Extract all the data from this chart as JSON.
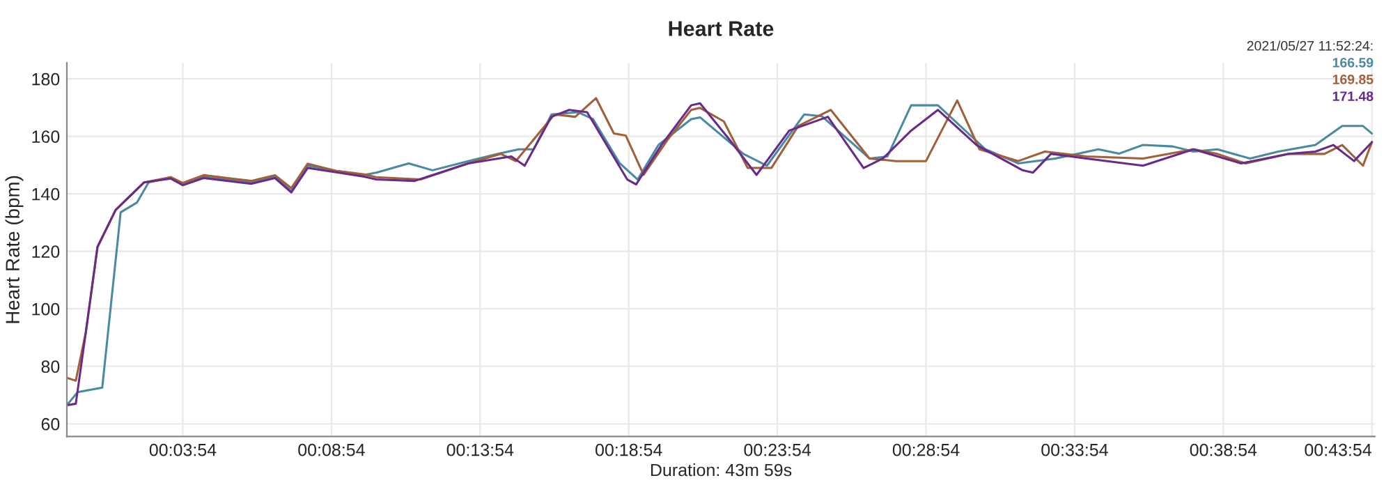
{
  "chart_data": {
    "type": "line",
    "title": "Heart Rate",
    "xlabel": "Duration: 43m 59s",
    "ylabel": "Heart Rate (bpm)",
    "xlim": [
      0,
      44
    ],
    "ylim": [
      55.6,
      185.5
    ],
    "xticks": [
      {
        "value": 3.9,
        "label": "00:03:54"
      },
      {
        "value": 8.9,
        "label": "00:08:54"
      },
      {
        "value": 13.9,
        "label": "00:13:54"
      },
      {
        "value": 18.9,
        "label": "00:18:54"
      },
      {
        "value": 23.9,
        "label": "00:23:54"
      },
      {
        "value": 28.9,
        "label": "00:28:54"
      },
      {
        "value": 33.9,
        "label": "00:33:54"
      },
      {
        "value": 38.9,
        "label": "00:38:54"
      },
      {
        "value": 43.9,
        "label": "00:43:54"
      }
    ],
    "yticks": [
      60,
      80,
      100,
      120,
      140,
      160,
      180
    ],
    "grid": true,
    "legend": false,
    "marker": "none",
    "line_style": "solid",
    "annotations": [
      "2021/05/27 11:52:24:",
      "166.59",
      "169.85",
      "171.48"
    ],
    "series": [
      {
        "color": "#4a8aa0",
        "x": [
          0,
          0.36,
          1.19,
          1.81,
          2.36,
          2.75,
          3.5,
          3.9,
          4.6,
          6.2,
          7.0,
          7.55,
          8.1,
          9.06,
          10.0,
          10.41,
          11.5,
          12.3,
          13.5,
          14.5,
          15.2,
          15.7,
          16.3,
          17.2,
          17.7,
          18.6,
          19.2,
          19.9,
          21.0,
          21.3,
          22.76,
          23.55,
          24.8,
          25.4,
          27.0,
          27.6,
          28.4,
          29.3,
          30.9,
          32.0,
          33.25,
          34.7,
          35.4,
          36.2,
          37.2,
          37.9,
          38.7,
          39.8,
          40.75,
          42.0,
          42.9,
          43.6,
          43.9
        ],
        "values": [
          66.5,
          71,
          72.6,
          133.6,
          137,
          144,
          145.8,
          143.3,
          146,
          144,
          146,
          141,
          149.8,
          148,
          146.6,
          147.4,
          150.6,
          148.2,
          151.4,
          153.9,
          155.5,
          155.5,
          167.6,
          168.4,
          166,
          150.6,
          145,
          157,
          166,
          166.6,
          153.9,
          149.8,
          167.6,
          167,
          152.3,
          153,
          170.8,
          170.8,
          155.5,
          150.6,
          152.3,
          155.5,
          154,
          157,
          156.5,
          154.7,
          155.5,
          152.3,
          154.7,
          157,
          163.6,
          163.6,
          161
        ]
      },
      {
        "color": "#a0603a",
        "x": [
          0,
          0.3,
          0.64,
          1.03,
          1.64,
          2.6,
          3.5,
          3.9,
          4.6,
          6.2,
          7.0,
          7.55,
          8.1,
          9.06,
          10.0,
          10.41,
          11.9,
          13.5,
          14.6,
          15.1,
          16.4,
          17.1,
          17.8,
          18.4,
          18.8,
          19.4,
          20.2,
          21.0,
          21.3,
          22.1,
          22.9,
          23.7,
          24.6,
          25.7,
          27.0,
          27.9,
          28.9,
          29.95,
          30.7,
          32.0,
          32.9,
          34.3,
          36.2,
          37.9,
          38.7,
          39.65,
          41.1,
          42.3,
          42.9,
          43.6,
          43.9
        ],
        "values": [
          76,
          75,
          92,
          121.5,
          134.4,
          144,
          145.8,
          143.8,
          146.5,
          144.5,
          146.5,
          142,
          150.5,
          148,
          146.8,
          145.8,
          145,
          150.6,
          153.9,
          151.4,
          167.6,
          166.8,
          173.3,
          161,
          160.3,
          146.6,
          158.7,
          169.2,
          169.9,
          165.2,
          149,
          149,
          163.6,
          169.2,
          152.3,
          151.4,
          151.4,
          172.5,
          155.5,
          151.4,
          154.7,
          153,
          152.3,
          155.5,
          153.9,
          150.6,
          153.9,
          153.9,
          157,
          149.8,
          158
        ]
      },
      {
        "color": "#6a2a8a",
        "x": [
          0,
          0.3,
          0.64,
          1.03,
          1.64,
          2.6,
          3.5,
          3.9,
          4.6,
          6.2,
          7.0,
          7.55,
          8.1,
          9.06,
          10.0,
          10.41,
          11.7,
          13.5,
          14.95,
          15.4,
          16.3,
          16.9,
          17.5,
          18.85,
          19.15,
          20.0,
          21.0,
          21.3,
          22.3,
          23.2,
          24.3,
          25.6,
          26.8,
          27.45,
          28.4,
          29.3,
          30.6,
          32.15,
          32.5,
          33.1,
          34.3,
          36.2,
          37.9,
          39.5,
          41.1,
          42.0,
          42.6,
          43.3,
          43.9
        ],
        "values": [
          66.5,
          67,
          92,
          121.5,
          134.4,
          144,
          145.3,
          143,
          145.5,
          143.5,
          145.5,
          140.5,
          149,
          147.5,
          146,
          145,
          144.5,
          150.6,
          153,
          149.8,
          166.8,
          169.2,
          168.4,
          145,
          143.3,
          157,
          170.8,
          171.5,
          158.7,
          146.6,
          162,
          166.8,
          149,
          152.3,
          162,
          169.2,
          157,
          148.2,
          147.4,
          153.9,
          152.3,
          149.8,
          155.5,
          150.6,
          153.9,
          154.7,
          157,
          151.4,
          158
        ]
      }
    ]
  }
}
